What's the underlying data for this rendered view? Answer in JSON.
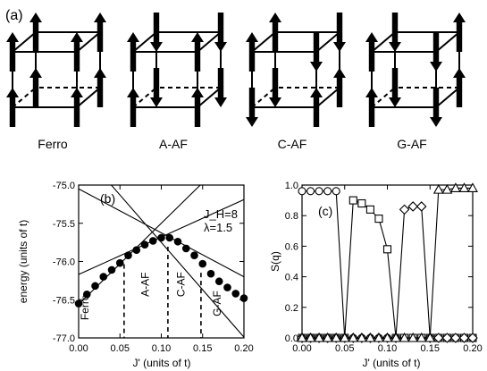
{
  "panel_a": {
    "label": "(a)",
    "cells": [
      {
        "name": "Ferro",
        "arrows": [
          "u",
          "u",
          "u",
          "u",
          "u",
          "u",
          "u",
          "u"
        ]
      },
      {
        "name": "A-AF",
        "arrows": [
          "u",
          "u",
          "u",
          "u",
          "d",
          "d",
          "d",
          "d"
        ]
      },
      {
        "name": "C-AF",
        "arrows": [
          "u",
          "d",
          "u",
          "d",
          "u",
          "d",
          "u",
          "d"
        ]
      },
      {
        "name": "G-AF",
        "arrows": [
          "u",
          "d",
          "d",
          "u",
          "d",
          "u",
          "u",
          "d"
        ]
      }
    ]
  },
  "chart_data": [
    {
      "type": "scatter",
      "panel_label": "(b)",
      "xlabel": "J' (units of t)",
      "ylabel": "energy (units of t)",
      "xlim": [
        0.0,
        0.2
      ],
      "ylim": [
        -77.0,
        -75.0
      ],
      "xticks": [
        "0.00",
        "0.05",
        "0.10",
        "0.15",
        "0.20"
      ],
      "yticks": [
        "-75.0",
        "-75.5",
        "-76.0",
        "-76.5",
        "-77.0"
      ],
      "annotations": [
        "J_H=8",
        "λ=1.5"
      ],
      "phase_labels": [
        "Ferro",
        "A-AF",
        "C-AF",
        "G-AF"
      ],
      "boundaries": [
        0.055,
        0.108,
        0.148
      ],
      "lines": [
        {
          "name": "Ferro",
          "p0": [
            0.0,
            -76.56
          ],
          "p1": [
            0.2,
            -74.44
          ]
        },
        {
          "name": "A-AF",
          "p0": [
            0.0,
            -76.17
          ],
          "p1": [
            0.2,
            -75.19
          ]
        },
        {
          "name": "C-AF",
          "p0": [
            0.0,
            -75.05
          ],
          "p1": [
            0.2,
            -76.2
          ]
        },
        {
          "name": "G-AF",
          "p0": [
            0.0,
            -74.51
          ],
          "p1": [
            0.2,
            -76.99
          ]
        }
      ],
      "points": {
        "x": [
          0.0,
          0.01,
          0.02,
          0.03,
          0.04,
          0.05,
          0.06,
          0.07,
          0.08,
          0.09,
          0.1,
          0.11,
          0.12,
          0.13,
          0.14,
          0.15,
          0.16,
          0.17,
          0.18,
          0.19,
          0.2
        ],
        "y": [
          -76.55,
          -76.43,
          -76.32,
          -76.2,
          -76.11,
          -76.02,
          -75.92,
          -75.85,
          -75.78,
          -75.73,
          -75.69,
          -75.69,
          -75.74,
          -75.83,
          -75.92,
          -76.03,
          -76.16,
          -76.26,
          -76.34,
          -76.42,
          -76.48
        ]
      }
    },
    {
      "type": "line",
      "panel_label": "(c)",
      "xlabel": "J' (units of t)",
      "ylabel": "S(q)",
      "xlim": [
        0.0,
        0.2
      ],
      "ylim": [
        0.0,
        1.0
      ],
      "xticks": [
        "0.00",
        "0.05",
        "0.10",
        "0.15",
        "0.20"
      ],
      "yticks": [
        "0.0",
        "0.2",
        "0.4",
        "0.6",
        "0.8",
        "1.0"
      ],
      "x": [
        0.0,
        0.01,
        0.02,
        0.03,
        0.04,
        0.05,
        0.06,
        0.07,
        0.08,
        0.09,
        0.1,
        0.11,
        0.12,
        0.13,
        0.14,
        0.15,
        0.16,
        0.17,
        0.18,
        0.19,
        0.2
      ],
      "series": [
        {
          "name": "Ferro",
          "marker": "circle",
          "values": [
            0.96,
            0.96,
            0.96,
            0.96,
            0.96,
            0.0,
            0.0,
            0.0,
            0.0,
            0.0,
            0.0,
            0.0,
            0.0,
            0.0,
            0.0,
            0.0,
            0.0,
            0.0,
            0.0,
            0.0,
            0.0
          ]
        },
        {
          "name": "A-AF",
          "marker": "square",
          "values": [
            0.0,
            0.0,
            0.0,
            0.0,
            0.0,
            0.0,
            0.9,
            0.88,
            0.84,
            0.78,
            0.58,
            0.0,
            0.0,
            0.0,
            0.0,
            0.0,
            0.0,
            0.0,
            0.0,
            0.0,
            0.0
          ]
        },
        {
          "name": "C-AF",
          "marker": "diamond",
          "values": [
            0.0,
            0.0,
            0.0,
            0.0,
            0.0,
            0.0,
            0.0,
            0.0,
            0.0,
            0.0,
            0.0,
            0.0,
            0.84,
            0.86,
            0.86,
            0.0,
            0.0,
            0.0,
            0.0,
            0.0,
            0.0
          ]
        },
        {
          "name": "G-AF",
          "marker": "triangle",
          "values": [
            0.0,
            0.0,
            0.0,
            0.0,
            0.0,
            0.0,
            0.0,
            0.0,
            0.0,
            0.0,
            0.0,
            0.0,
            0.0,
            0.0,
            0.0,
            0.0,
            0.97,
            0.97,
            0.98,
            0.98,
            0.98
          ]
        }
      ]
    }
  ]
}
